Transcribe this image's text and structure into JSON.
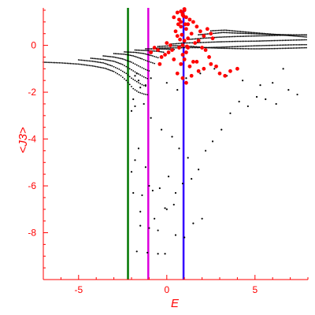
{
  "chart_data": {
    "type": "scatter",
    "title": "",
    "xlabel": "E",
    "ylabel": "<J3>",
    "xlim": [
      -7,
      8
    ],
    "ylim": [
      -10,
      1.6
    ],
    "x_ticks": [
      -5,
      0,
      5
    ],
    "y_ticks": [
      0,
      -2,
      -4,
      -6,
      -8
    ],
    "x_tick_labels": [
      "-5",
      "0",
      "5"
    ],
    "y_tick_labels": [
      "0",
      "-2",
      "-4",
      "-6",
      "-8"
    ],
    "grid": false,
    "legend": "none",
    "colors": {
      "axes": "#ff0000",
      "black_points": "#000000",
      "red_points": "#ff0000",
      "green_line": "#007700",
      "magenta_line": "#dd00dd",
      "blue_line": "#3300ff"
    },
    "vertical_lines": [
      {
        "x": -2.2,
        "color": "#007700"
      },
      {
        "x": -1.05,
        "color": "#dd00dd"
      },
      {
        "x": 0.95,
        "color": "#3300ff"
      }
    ],
    "black_curves": [
      {
        "x": [
          -7.0,
          -6.0,
          -5.0,
          -4.2,
          -3.5,
          -3.0,
          -2.6,
          -2.3,
          -2.1,
          -1.9,
          -1.6,
          -1.3,
          -1.0
        ],
        "y": [
          -0.72,
          -0.75,
          -0.8,
          -0.88,
          -0.98,
          -1.12,
          -1.3,
          -1.5,
          -1.67,
          -1.85,
          -2.0,
          -2.08,
          -2.12
        ]
      },
      {
        "x": [
          -5.0,
          -4.2,
          -3.6,
          -3.1,
          -2.7,
          -2.3,
          -2.0,
          -1.7,
          -1.4,
          -1.1
        ],
        "y": [
          -0.62,
          -0.68,
          -0.75,
          -0.88,
          -1.02,
          -1.2,
          -1.4,
          -1.55,
          -1.68,
          -1.78
        ]
      },
      {
        "x": [
          -4.3,
          -3.6,
          -3.0,
          -2.5,
          -2.1,
          -1.7,
          -1.3,
          -1.0
        ],
        "y": [
          -0.55,
          -0.6,
          -0.68,
          -0.82,
          -1.0,
          -1.18,
          -1.35,
          -1.45
        ]
      },
      {
        "x": [
          -3.6,
          -3.0,
          -2.5,
          -2.0,
          -1.6,
          -1.2,
          -0.9
        ],
        "y": [
          -0.45,
          -0.5,
          -0.58,
          -0.72,
          -0.88,
          -1.03,
          -1.12
        ]
      },
      {
        "x": [
          -3.0,
          -2.4,
          -1.9,
          -1.4,
          -1.0,
          -0.6
        ],
        "y": [
          -0.35,
          -0.38,
          -0.45,
          -0.58,
          -0.7,
          -0.8
        ]
      },
      {
        "x": [
          -2.4,
          -1.8,
          -1.3,
          -0.8,
          -0.4
        ],
        "y": [
          -0.28,
          -0.3,
          -0.35,
          -0.45,
          -0.55
        ]
      },
      {
        "x": [
          -1.8,
          -1.2,
          -0.6,
          -0.1
        ],
        "y": [
          -0.2,
          -0.22,
          -0.25,
          -0.3
        ]
      },
      {
        "x": [
          -1.2,
          -0.6,
          0.0,
          0.5
        ],
        "y": [
          -0.15,
          -0.15,
          -0.16,
          -0.18
        ]
      },
      {
        "x": [
          -0.6,
          0.2,
          1.0,
          2.0,
          3.0,
          4.0,
          5.0,
          6.0,
          7.0,
          8.0
        ],
        "y": [
          -0.12,
          -0.11,
          -0.1,
          -0.1,
          -0.08,
          -0.05,
          -0.02,
          0.0,
          0.02,
          0.03
        ]
      },
      {
        "x": [
          0.2,
          1.0,
          2.0,
          3.0,
          4.0,
          5.0,
          6.0,
          7.0,
          8.0
        ],
        "y": [
          0.05,
          0.1,
          0.12,
          0.15,
          0.17,
          0.18,
          0.2,
          0.22,
          0.24
        ]
      },
      {
        "x": [
          1.2,
          2.0,
          3.0,
          4.0,
          5.0,
          6.0,
          7.0,
          8.0
        ],
        "y": [
          0.25,
          0.3,
          0.35,
          0.38,
          0.4,
          0.42,
          0.44,
          0.45
        ]
      },
      {
        "x": [
          1.8,
          2.5,
          3.2,
          4.0,
          4.8,
          5.5,
          6.3,
          7.0,
          8.0
        ],
        "y": [
          0.45,
          0.5,
          0.55,
          0.52,
          0.5,
          0.48,
          0.46,
          0.45,
          0.44
        ]
      },
      {
        "x": [
          2.5,
          3.3,
          4.0,
          4.8,
          5.6,
          6.4,
          7.2,
          8.0
        ],
        "y": [
          0.62,
          0.65,
          0.6,
          0.55,
          0.5,
          0.45,
          0.4,
          0.35
        ]
      },
      {
        "x": [
          -0.5,
          0.2,
          0.8,
          1.5,
          2.2,
          3.0,
          4.0,
          5.0,
          6.0,
          7.0,
          8.0
        ],
        "y": [
          -0.05,
          -0.02,
          -0.02,
          -0.05,
          -0.1,
          -0.12,
          -0.14,
          -0.15,
          -0.14,
          -0.12,
          -0.1
        ]
      }
    ],
    "black_points": {
      "x": [
        -2.0,
        -1.9,
        -1.8,
        -1.6,
        -1.4,
        -1.2,
        -1.0,
        -0.8,
        -0.4,
        0.1,
        0.5,
        0.9,
        1.4,
        1.8,
        2.2,
        2.6,
        3.1,
        3.6,
        4.1,
        4.6,
        5.1,
        5.6,
        6.2,
        6.9,
        7.4,
        0.0,
        0.6,
        1.1,
        1.9,
        2.7,
        3.4,
        4.3,
        5.3,
        6.0,
        6.6,
        -1.7,
        -1.5,
        -1.9,
        -1.8,
        -2.0,
        -1.3,
        -0.9,
        -0.3,
        0.3,
        0.7,
        1.2,
        -1.5,
        -1.0,
        -0.5,
        0.5,
        1.0,
        1.5,
        2.0,
        -0.1,
        -1.1,
        -1.7,
        -0.5,
        0.0,
        -1.5,
        -0.1,
        -0.7,
        0.4,
        -1.8,
        -1.6,
        -1.2,
        -0.9
      ],
      "y": [
        -5.4,
        -6.3,
        -4.9,
        -4.4,
        -6.4,
        -5.2,
        -6.0,
        -6.2,
        -6.1,
        -5.6,
        -6.3,
        -5.9,
        -5.7,
        -5.3,
        -4.5,
        -4.1,
        -3.6,
        -2.9,
        -2.4,
        -2.6,
        -2.2,
        -2.3,
        -2.5,
        -1.9,
        -2.1,
        -1.6,
        -1.9,
        -1.4,
        -1.2,
        -1.0,
        -1.3,
        -1.5,
        -1.7,
        -1.6,
        -1.0,
        -1.2,
        -1.8,
        -2.3,
        -2.6,
        -2.8,
        -2.5,
        -3.1,
        -3.6,
        -3.9,
        -4.4,
        -4.8,
        -7.7,
        -7.8,
        -7.9,
        -8.1,
        -8.2,
        -7.6,
        -7.4,
        -8.9,
        -8.85,
        -8.8,
        -8.9,
        -7.0,
        -7.1,
        -6.95,
        -7.4,
        -6.8,
        -1.3,
        -1.5,
        -1.7,
        -1.4
      ]
    },
    "red_points": {
      "x": [
        0.4,
        0.6,
        0.7,
        0.8,
        0.9,
        1.0,
        1.1,
        1.2,
        1.3,
        1.5,
        1.7,
        1.9,
        2.1,
        2.3,
        2.5,
        2.6,
        0.5,
        0.6,
        0.8,
        1.0,
        1.2,
        1.4,
        1.6,
        1.8,
        2.0,
        2.2,
        0.9,
        1.0,
        1.1,
        0.7,
        0.9,
        1.2,
        0.3,
        0.1,
        -0.1,
        -0.3,
        -0.5,
        -0.7,
        -0.9,
        0.0,
        0.2,
        0.4,
        0.8,
        1.3,
        1.5,
        1.8,
        2.1,
        2.5,
        2.8,
        3.0,
        3.3,
        3.6,
        4.0,
        -0.4,
        0.6,
        0.9,
        1.1,
        1.4,
        1.7,
        2.4,
        1.0,
        0.8,
        0.9,
        0.95,
        1.05,
        1.1,
        0.85,
        0.75,
        0.65,
        1.15
      ],
      "y": [
        1.2,
        1.4,
        1.1,
        1.0,
        1.3,
        1.5,
        1.2,
        0.9,
        1.1,
        1.0,
        0.8,
        0.6,
        0.4,
        0.7,
        0.5,
        0.3,
        0.6,
        0.4,
        0.8,
        0.2,
        0.3,
        0.5,
        0.1,
        0.2,
        -0.1,
        -0.2,
        -0.4,
        -0.6,
        -0.3,
        -0.1,
        0.0,
        -0.1,
        -0.2,
        -0.3,
        -0.4,
        -0.5,
        -0.2,
        -0.1,
        -0.3,
        0.1,
        0.0,
        -0.6,
        -0.8,
        -0.9,
        -0.7,
        -1.1,
        -1.0,
        -0.8,
        -0.9,
        -1.2,
        -1.3,
        -1.1,
        -1.0,
        -0.8,
        -1.2,
        -1.4,
        -1.6,
        -1.3,
        -0.7,
        -0.5,
        1.55,
        1.45,
        1.35,
        1.25,
        0.9,
        0.7,
        0.45,
        0.25,
        0.9,
        -0.05
      ]
    }
  }
}
